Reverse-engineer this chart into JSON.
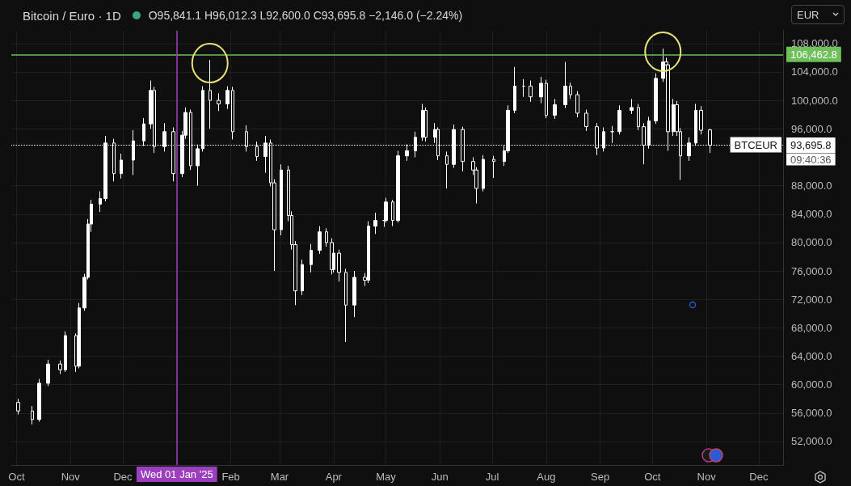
{
  "chart_data": {
    "type": "candlestick",
    "title": "Bitcoin / Euro · 1D",
    "color": "#ffffff",
    "x": [
      "2024-10-02",
      "2024-10-10",
      "2024-10-14",
      "2024-10-19",
      "2024-10-26",
      "2024-10-29",
      "2024-11-04",
      "2024-11-06",
      "2024-11-09",
      "2024-11-11",
      "2024-11-13",
      "2024-11-18",
      "2024-11-21",
      "2024-11-26",
      "2024-11-30",
      "2024-12-07",
      "2024-12-13",
      "2024-12-17",
      "2024-12-19",
      "2024-12-25",
      "2024-12-30",
      "2025-01-04",
      "2025-01-06",
      "2025-01-09",
      "2025-01-13",
      "2025-01-16",
      "2025-01-20",
      "2025-01-25",
      "2025-01-30",
      "2025-02-02",
      "2025-02-10",
      "2025-02-16",
      "2025-02-21",
      "2025-02-24",
      "2025-02-26",
      "2025-03-02",
      "2025-03-06",
      "2025-03-08",
      "2025-03-10",
      "2025-03-14",
      "2025-03-19",
      "2025-03-24",
      "2025-03-28",
      "2025-03-31",
      "2025-04-01",
      "2025-04-04",
      "2025-04-08",
      "2025-04-13",
      "2025-04-19",
      "2025-04-21",
      "2025-04-25",
      "2025-04-30",
      "2025-05-01",
      "2025-05-05",
      "2025-05-08",
      "2025-05-13",
      "2025-05-18",
      "2025-05-22",
      "2025-05-24",
      "2025-05-29",
      "2025-05-31",
      "2025-06-05",
      "2025-06-09",
      "2025-06-14",
      "2025-06-20",
      "2025-06-22",
      "2025-06-26",
      "2025-07-02",
      "2025-07-08",
      "2025-07-10",
      "2025-07-14",
      "2025-07-19",
      "2025-07-23",
      "2025-07-29",
      "2025-08-01",
      "2025-08-06",
      "2025-08-12",
      "2025-08-15",
      "2025-08-19",
      "2025-08-24",
      "2025-08-30",
      "2025-09-03",
      "2025-09-08",
      "2025-09-12",
      "2025-09-19",
      "2025-09-23",
      "2025-09-26",
      "2025-09-29",
      "2025-10-03",
      "2025-10-07",
      "2025-10-09",
      "2025-10-10",
      "2025-10-13",
      "2025-10-15",
      "2025-10-17",
      "2025-10-22",
      "2025-10-26",
      "2025-10-29",
      "2025-11-03"
    ],
    "ohlc": [
      [
        57500,
        58000,
        55800,
        56300
      ],
      [
        56300,
        57000,
        54400,
        55100
      ],
      [
        55100,
        60800,
        54800,
        60200
      ],
      [
        60200,
        63500,
        59800,
        62900
      ],
      [
        62900,
        63400,
        61500,
        62100
      ],
      [
        62100,
        67500,
        61800,
        66900
      ],
      [
        66900,
        67200,
        61800,
        62600
      ],
      [
        62600,
        71500,
        62300,
        70800
      ],
      [
        70800,
        75600,
        70400,
        75100
      ],
      [
        75100,
        83300,
        74800,
        82600
      ],
      [
        82600,
        86000,
        81500,
        85400
      ],
      [
        85400,
        87200,
        84300,
        86200
      ],
      [
        86200,
        95000,
        85800,
        94000
      ],
      [
        94000,
        94600,
        88600,
        89700
      ],
      [
        89700,
        92500,
        89000,
        91600
      ],
      [
        91600,
        95800,
        89500,
        94300
      ],
      [
        94300,
        97500,
        93600,
        96700
      ],
      [
        96700,
        102800,
        96000,
        101400
      ],
      [
        101400,
        101900,
        92600,
        93500
      ],
      [
        93500,
        96800,
        92800,
        95600
      ],
      [
        95600,
        96200,
        88600,
        89700
      ],
      [
        89700,
        95700,
        89200,
        95100
      ],
      [
        95100,
        99000,
        94600,
        98300
      ],
      [
        98300,
        98700,
        90200,
        90800
      ],
      [
        90800,
        93800,
        88000,
        93200
      ],
      [
        93200,
        102000,
        92800,
        101400
      ],
      [
        101400,
        105700,
        96000,
        100000
      ],
      [
        100000,
        101000,
        98500,
        99500
      ],
      [
        99500,
        102000,
        98800,
        101400
      ],
      [
        101400,
        101900,
        94500,
        95600
      ],
      [
        95600,
        96500,
        92800,
        93500
      ],
      [
        93500,
        94200,
        91500,
        92100
      ],
      [
        92100,
        95000,
        89800,
        94000
      ],
      [
        94000,
        94500,
        87900,
        88400
      ],
      [
        88400,
        88900,
        76000,
        81800
      ],
      [
        81800,
        91000,
        81000,
        90200
      ],
      [
        90200,
        90800,
        83000,
        83800
      ],
      [
        83800,
        84400,
        79000,
        79700
      ],
      [
        79700,
        80200,
        71200,
        73200
      ],
      [
        73200,
        77600,
        72600,
        76900
      ],
      [
        76900,
        79800,
        75800,
        78900
      ],
      [
        78900,
        82300,
        78400,
        81500
      ],
      [
        81500,
        82000,
        79400,
        80000
      ],
      [
        80000,
        80600,
        75500,
        76200
      ],
      [
        76200,
        79300,
        75800,
        78500
      ],
      [
        78500,
        79000,
        74500,
        75800
      ],
      [
        75800,
        76300,
        66000,
        71200
      ],
      [
        71200,
        76000,
        69500,
        75100
      ],
      [
        75100,
        75700,
        73900,
        74700
      ],
      [
        74700,
        83000,
        74300,
        82300
      ],
      [
        82300,
        84200,
        81200,
        83100
      ],
      [
        83100,
        84000,
        82200,
        83100
      ],
      [
        83100,
        86300,
        82800,
        85700
      ],
      [
        85700,
        86000,
        82300,
        83100
      ],
      [
        83100,
        92900,
        82800,
        92200
      ],
      [
        92200,
        93800,
        91500,
        92900
      ],
      [
        92900,
        95600,
        92000,
        94800
      ],
      [
        94800,
        99500,
        94300,
        98600
      ],
      [
        98600,
        99000,
        94200,
        94800
      ],
      [
        94800,
        96800,
        94000,
        95900
      ],
      [
        95900,
        96200,
        91600,
        92200
      ],
      [
        92200,
        92800,
        87600,
        91000
      ],
      [
        91000,
        96600,
        90500,
        95900
      ],
      [
        95900,
        96300,
        90000,
        91400
      ],
      [
        91400,
        92000,
        89500,
        90200
      ],
      [
        90200,
        90600,
        85500,
        87600
      ],
      [
        87600,
        92300,
        87200,
        91700
      ],
      [
        91700,
        92200,
        89100,
        91400
      ],
      [
        91400,
        93600,
        90800,
        92900
      ],
      [
        92900,
        99300,
        92600,
        98600
      ],
      [
        98600,
        104700,
        98200,
        102000
      ],
      [
        102000,
        103000,
        100500,
        102000
      ],
      [
        102000,
        102800,
        99800,
        100500
      ],
      [
        100500,
        103300,
        99600,
        102400
      ],
      [
        102400,
        102900,
        97500,
        97900
      ],
      [
        97900,
        100200,
        97400,
        99400
      ],
      [
        99400,
        105400,
        98900,
        102000
      ],
      [
        102000,
        102500,
        100200,
        100800
      ],
      [
        100800,
        101300,
        97600,
        98200
      ],
      [
        98200,
        98700,
        95700,
        96300
      ],
      [
        96300,
        96800,
        92300,
        93300
      ],
      [
        93300,
        96200,
        92800,
        95600
      ],
      [
        95600,
        96400,
        94000,
        95600
      ],
      [
        95600,
        99300,
        95200,
        98600
      ],
      [
        98600,
        100200,
        98100,
        99000
      ],
      [
        99000,
        99500,
        95800,
        96300
      ],
      [
        96300,
        96800,
        91000,
        93700
      ],
      [
        93700,
        97700,
        93200,
        97100
      ],
      [
        97100,
        103800,
        96700,
        103100
      ],
      [
        103100,
        107300,
        102600,
        105400
      ],
      [
        105400,
        106000,
        104400,
        105000
      ],
      [
        105000,
        105400,
        92900,
        95600
      ],
      [
        95600,
        100200,
        95000,
        99400
      ],
      [
        99400,
        99900,
        95000,
        95600
      ],
      [
        95600,
        96100,
        88800,
        92200
      ],
      [
        92200,
        94800,
        91500,
        94000
      ],
      [
        94000,
        99500,
        93600,
        98600
      ],
      [
        98600,
        99200,
        95200,
        95800
      ],
      [
        95841.1,
        96012.3,
        92600.0,
        93695.8
      ]
    ],
    "xlim": [
      "2024-09-28",
      "2025-12-15"
    ],
    "xticks": [
      {
        "value": "2024-10-01",
        "label": "Oct"
      },
      {
        "value": "2024-11-01",
        "label": "Nov"
      },
      {
        "value": "2024-12-01",
        "label": "Dec"
      },
      {
        "value": "2025-01-01",
        "label": null
      },
      {
        "value": "2025-02-01",
        "label": "Feb"
      },
      {
        "value": "2025-03-01",
        "label": "Mar"
      },
      {
        "value": "2025-04-01",
        "label": "Apr"
      },
      {
        "value": "2025-05-01",
        "label": "May"
      },
      {
        "value": "2025-06-01",
        "label": "Jun"
      },
      {
        "value": "2025-07-01",
        "label": "Jul"
      },
      {
        "value": "2025-08-01",
        "label": "Aug"
      },
      {
        "value": "2025-09-01",
        "label": "Sep"
      },
      {
        "value": "2025-10-01",
        "label": "Oct"
      },
      {
        "value": "2025-11-01",
        "label": "Nov"
      },
      {
        "value": "2025-12-01",
        "label": "Dec"
      }
    ],
    "ylim": [
      48700,
      109800
    ],
    "yticks": [
      {
        "value": 52000,
        "label": "52,000.0"
      },
      {
        "value": 56000,
        "label": "56,000.0"
      },
      {
        "value": 60000,
        "label": "60,000.0"
      },
      {
        "value": 64000,
        "label": "64,000.0"
      },
      {
        "value": 68000,
        "label": "68,000.0"
      },
      {
        "value": 72000,
        "label": "72,000.0"
      },
      {
        "value": 76000,
        "label": "76,000.0"
      },
      {
        "value": 80000,
        "label": "80,000.0"
      },
      {
        "value": 84000,
        "label": "84,000.0"
      },
      {
        "value": 88000,
        "label": "88,000.0"
      },
      {
        "value": 96000,
        "label": "96,000.0"
      },
      {
        "value": 100000,
        "label": "100,000.0"
      },
      {
        "value": 104000,
        "label": "104,000.0"
      },
      {
        "value": 108000,
        "label": "108,000.0"
      }
    ],
    "grid": true,
    "ref_lines": [
      {
        "axis": "y",
        "value": 106462.8,
        "label": "106,462.8",
        "color": "#6fbf5a",
        "line_style": "solid"
      },
      {
        "axis": "y",
        "value": 93695.8,
        "label": "93,695.8",
        "color": "#ffffff",
        "line_style": "dotted"
      },
      {
        "axis": "x",
        "value": "2025-01-01",
        "label": "Wed 01 Jan '25",
        "color": "#9c3fbf",
        "line_style": "solid"
      }
    ],
    "annotations": [
      "O95,841.1 H96,012.3 L92,600.0 C93,695.8 −2,146.0 (−2.24%)",
      {
        "text": "BTCEUR",
        "y": 93695.8
      },
      "EUR",
      "09:40:36"
    ]
  }
}
